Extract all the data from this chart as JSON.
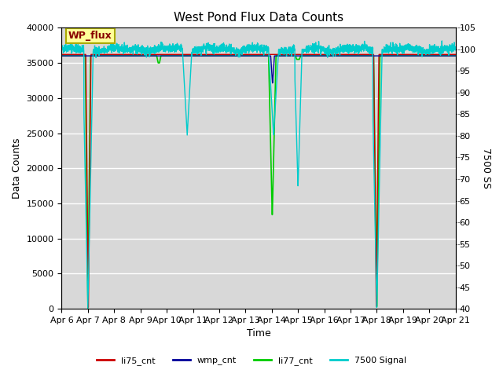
{
  "title": "West Pond Flux Data Counts",
  "xlabel": "Time",
  "ylabel_left": "Data Counts",
  "ylabel_right": "7500 SS",
  "ylim_left": [
    0,
    40000
  ],
  "ylim_right": [
    40,
    105
  ],
  "xlim": [
    0,
    15
  ],
  "x_tick_labels": [
    "Apr 6",
    "Apr 7",
    "Apr 8",
    "Apr 9",
    "Apr 10",
    "Apr 11",
    "Apr 12",
    "Apr 13",
    "Apr 14",
    "Apr 15",
    "Apr 16",
    "Apr 17",
    "Apr 18",
    "Apr 19",
    "Apr 20",
    "Apr 21"
  ],
  "bg_color": "#d8d8d8",
  "fig_color": "#ffffff",
  "legend_box_color": "#ffff99",
  "legend_box_edge": "#aaaa00",
  "legend_box_text": "WP_flux",
  "legend_box_text_color": "#880000",
  "series_colors": {
    "li75_cnt": "#cc0000",
    "wmp_cnt": "#000099",
    "li77_cnt": "#00cc00",
    "7500_signal": "#00cccc"
  },
  "grid_color": "#ffffff",
  "right_tick_style": "dotted"
}
